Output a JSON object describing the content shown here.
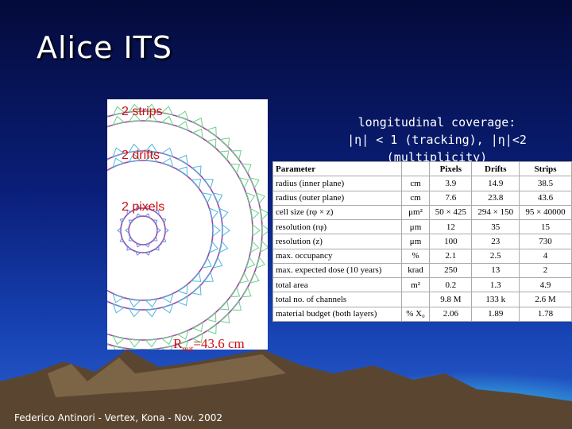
{
  "title": "Alice ITS",
  "figure": {
    "labels": [
      "2 strips",
      "2 drifts",
      "2 pixels"
    ],
    "radius_label": {
      "symbol": "R",
      "subscript": "out",
      "text": "=43.6  cm"
    }
  },
  "coverage": {
    "heading": "longitudinal coverage:",
    "text": "|η| < 1 (tracking), |η|<2 (multiplicity)"
  },
  "table": {
    "header": {
      "parameter": "Parameter",
      "columns": [
        "Pixels",
        "Drifts",
        "Strips"
      ]
    },
    "rows": [
      {
        "parameter": "radius (inner plane)",
        "unit": "cm",
        "values": [
          "3.9",
          "14.9",
          "38.5"
        ]
      },
      {
        "parameter": "radius (outer plane)",
        "unit": "cm",
        "values": [
          "7.6",
          "23.8",
          "43.6"
        ]
      },
      {
        "parameter": "cell size (rφ × z)",
        "unit": "μm²",
        "values": [
          "50 × 425",
          "294 × 150",
          "95 × 40000"
        ]
      },
      {
        "parameter": "resolution (rφ)",
        "unit": "μm",
        "values": [
          "12",
          "35",
          "15"
        ]
      },
      {
        "parameter": "resolution (z)",
        "unit": "μm",
        "values": [
          "100",
          "23",
          "730"
        ]
      },
      {
        "parameter": "max. occupancy",
        "unit": "%",
        "values": [
          "2.1",
          "2.5",
          "4"
        ]
      },
      {
        "parameter": "max. expected dose (10 years)",
        "unit": "krad",
        "values": [
          "250",
          "13",
          "2"
        ]
      },
      {
        "parameter": "total area",
        "unit": "m²",
        "values": [
          "0.2",
          "1.3",
          "4.9"
        ]
      },
      {
        "parameter": "total no. of channels",
        "values": [
          "9.8 M",
          "133 k",
          "2.6 M"
        ]
      },
      {
        "parameter": "material budget (both layers)",
        "unit": "% X₀",
        "values": [
          "2.06",
          "1.89",
          "1.78"
        ]
      }
    ]
  },
  "footer": "Federico Antinori - Vertex, Kona - Nov. 2002"
}
